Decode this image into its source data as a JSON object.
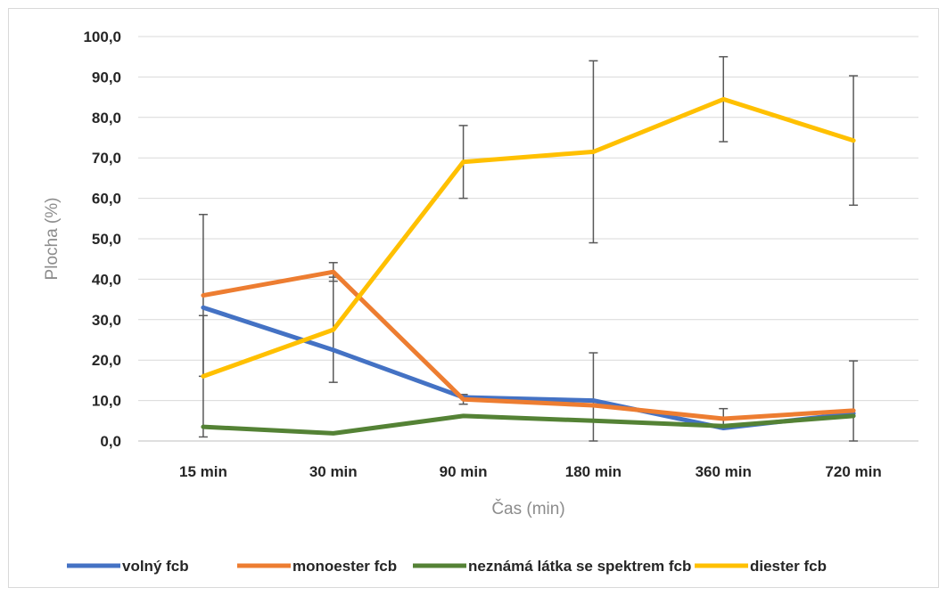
{
  "chart_data": {
    "type": "line",
    "title": "",
    "xlabel": "Čas (min)",
    "ylabel": "Plocha (%)",
    "ylim": [
      0,
      100
    ],
    "ytick_step": 10,
    "ytick_labels": [
      "0,0",
      "10,0",
      "20,0",
      "30,0",
      "40,0",
      "50,0",
      "60,0",
      "70,0",
      "80,0",
      "90,0",
      "100,0"
    ],
    "categories": [
      "15 min",
      "30 min",
      "90 min",
      "180 min",
      "360 min",
      "720 min"
    ],
    "grid": true,
    "legend_position": "bottom",
    "series": [
      {
        "name": "volný fcb",
        "color": "#4472C4",
        "values": [
          33.0,
          22.5,
          10.8,
          10.0,
          3.2,
          6.8
        ],
        "error": [
          null,
          null,
          null,
          null,
          null,
          null
        ]
      },
      {
        "name": "monoester fcb",
        "color": "#ED7D31",
        "values": [
          36.0,
          41.8,
          10.3,
          8.8,
          5.5,
          7.5
        ],
        "error": [
          20.0,
          2.3,
          1.2,
          13.0,
          2.5,
          12.3
        ]
      },
      {
        "name": "neznámá látka se spektrem fcb",
        "color": "#548235",
        "values": [
          3.5,
          1.9,
          6.2,
          5.0,
          3.7,
          6.2
        ],
        "error": [
          null,
          null,
          null,
          null,
          null,
          null
        ]
      },
      {
        "name": "diester fcb",
        "color": "#FFC000",
        "values": [
          16.0,
          27.5,
          69.0,
          71.5,
          84.5,
          74.3
        ],
        "error": [
          15.0,
          13.0,
          9.0,
          22.5,
          10.5,
          16.0
        ]
      }
    ]
  }
}
